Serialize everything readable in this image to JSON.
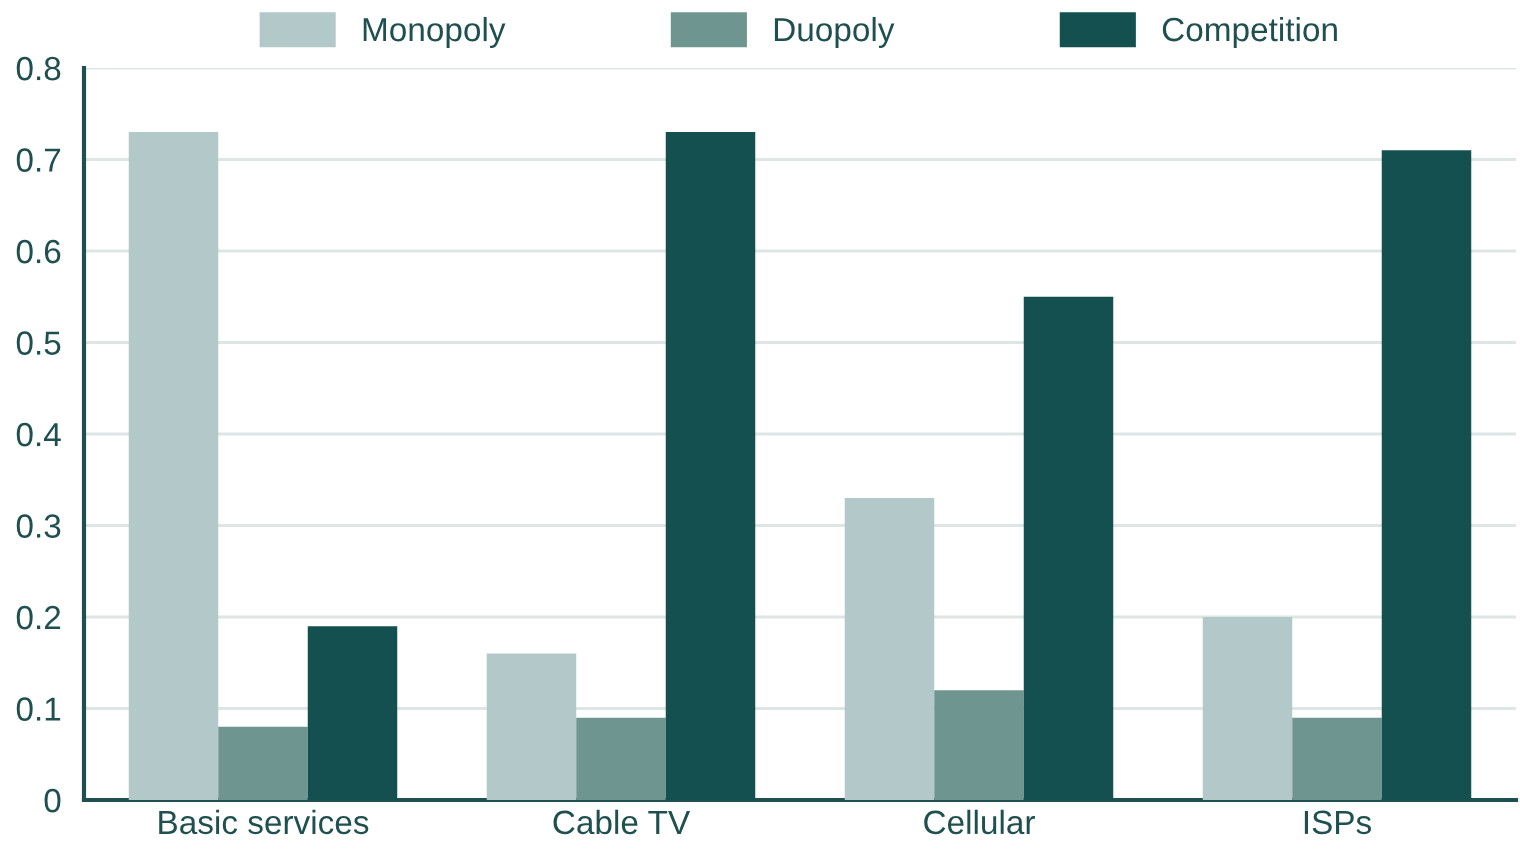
{
  "chart_data": {
    "type": "bar",
    "categories": [
      "Basic services",
      "Cable TV",
      "Cellular",
      "ISPs"
    ],
    "series": [
      {
        "name": "Monopoly",
        "color": "#b3c8c8",
        "values": [
          0.73,
          0.16,
          0.33,
          0.2
        ]
      },
      {
        "name": "Duopoly",
        "color": "#6f9591",
        "values": [
          0.08,
          0.09,
          0.12,
          0.09
        ]
      },
      {
        "name": "Competition",
        "color": "#145050",
        "values": [
          0.19,
          0.73,
          0.55,
          0.71
        ]
      }
    ],
    "ylim": [
      0,
      0.8
    ],
    "yticks": [
      {
        "value": 0,
        "label": "0"
      },
      0.1,
      0.2,
      0.3,
      0.4,
      0.5,
      0.6,
      0.7,
      0.8
    ],
    "grid": "y",
    "legend": "top"
  }
}
